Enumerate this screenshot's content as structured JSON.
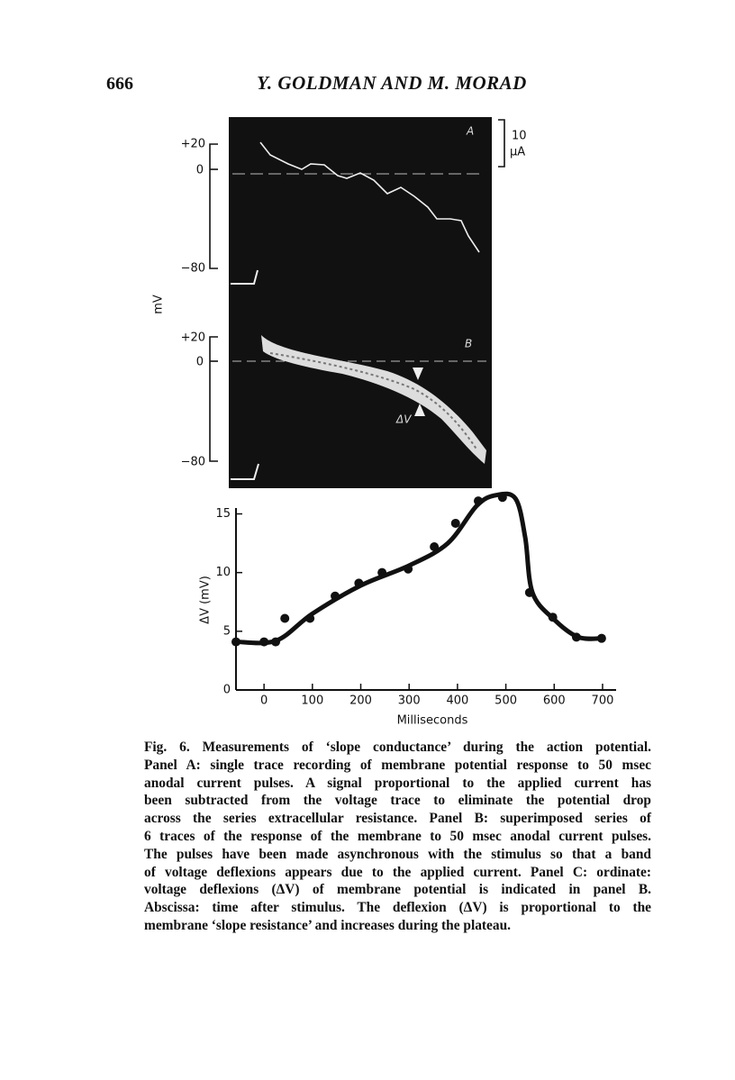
{
  "header": {
    "page_number": "666",
    "running_title": "Y. GOLDMAN AND M. MORAD"
  },
  "figure": {
    "panel_a": {
      "label": "A",
      "y_top": "+20",
      "y_zero": "0",
      "y_bottom": "−80",
      "scale_value": "10",
      "scale_unit": "μA"
    },
    "panel_b": {
      "label": "B",
      "y_top": "+20",
      "y_zero": "0",
      "y_bottom": "−80",
      "arrow_label": "ΔV"
    },
    "y_unit": "mV"
  },
  "chart_data": {
    "type": "line",
    "ylabel": "ΔV (mV)",
    "xlabel": "Milliseconds",
    "xlim": [
      -58,
      728
    ],
    "ylim": [
      0,
      15.5
    ],
    "xticks": [
      0,
      100,
      200,
      300,
      400,
      500,
      600,
      700
    ],
    "yticks": [
      0,
      5,
      10,
      15
    ],
    "series": [
      {
        "color": "#111",
        "style": "points",
        "x": [
          -58,
          0,
          24,
          43,
          95,
          147,
          196,
          244,
          298,
          352,
          396,
          443,
          493,
          549,
          597,
          646,
          698
        ],
        "values": [
          4.1,
          4.1,
          4.1,
          6.1,
          6.1,
          8.0,
          9.1,
          10.0,
          10.3,
          12.2,
          14.2,
          16.1,
          16.4,
          8.3,
          6.2,
          4.5,
          4.4
        ]
      },
      {
        "color": "#111",
        "style": "curve",
        "x": [
          -58,
          25,
          100,
          200,
          300,
          380,
          440,
          480,
          520,
          540,
          555,
          600,
          650,
          700
        ],
        "values": [
          4.1,
          4.2,
          6.5,
          8.9,
          10.6,
          12.5,
          15.7,
          16.6,
          16.3,
          13.0,
          8.3,
          6.0,
          4.5,
          4.4
        ]
      }
    ]
  },
  "caption": {
    "lines": [
      "Fig. 6. Measurements of ‘slope conductance’ during the action potential.",
      "Panel A: single trace recording of membrane potential response to 50 msec",
      "anodal current pulses. A signal proportional to the applied current has",
      "been subtracted from the voltage trace to eliminate the potential drop",
      "across the series extracellular resistance. Panel B: superimposed series of",
      "6 traces of the response of the membrane to 50 msec anodal current pulses.",
      "The pulses have been made asynchronous with the stimulus so that a band",
      "of voltage deflexions appears due to the applied current. Panel C: ordinate:",
      "voltage deflexions (ΔV) of membrane potential is indicated in panel B.",
      "Abscissa: time after stimulus. The deflexion (ΔV) is proportional to the",
      "membrane ‘slope resistance’ and increases during the plateau."
    ]
  }
}
